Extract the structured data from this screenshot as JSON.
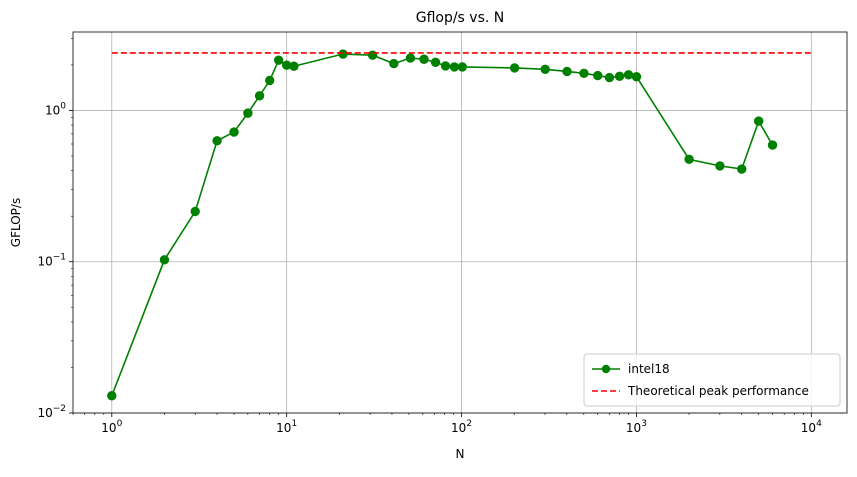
{
  "chart_data": {
    "type": "line",
    "title": "Gflop/s vs. N",
    "xlabel": "N",
    "ylabel": "GFLOP/s",
    "xscale": "log",
    "yscale": "log",
    "xlim": [
      0.6,
      16000
    ],
    "ylim": [
      0.01,
      3.3
    ],
    "grid": true,
    "legend_position": "lower right",
    "x_ticks": [
      {
        "value": 1,
        "base": "10",
        "exp": "0"
      },
      {
        "value": 10,
        "base": "10",
        "exp": "1"
      },
      {
        "value": 100,
        "base": "10",
        "exp": "2"
      },
      {
        "value": 1000,
        "base": "10",
        "exp": "3"
      },
      {
        "value": 10000,
        "base": "10",
        "exp": "4"
      }
    ],
    "y_ticks": [
      {
        "value": 0.01,
        "base": "10",
        "exp": "−2"
      },
      {
        "value": 0.1,
        "base": "10",
        "exp": "−1"
      },
      {
        "value": 1,
        "base": "10",
        "exp": "0"
      }
    ],
    "series": [
      {
        "name": "intel18",
        "color": "#008000",
        "style": "line-marker",
        "x": [
          1,
          2,
          3,
          4,
          5,
          6,
          7,
          8,
          9,
          10,
          11,
          21,
          31,
          41,
          51,
          61,
          71,
          81,
          91,
          101,
          201,
          301,
          401,
          501,
          601,
          701,
          801,
          901,
          1001,
          2001,
          3001,
          4001,
          5001,
          6001
        ],
        "y": [
          0.013,
          0.103,
          0.215,
          0.63,
          0.72,
          0.96,
          1.25,
          1.58,
          2.15,
          1.99,
          1.96,
          2.36,
          2.32,
          2.04,
          2.22,
          2.18,
          2.08,
          1.97,
          1.94,
          1.94,
          1.91,
          1.87,
          1.81,
          1.76,
          1.7,
          1.65,
          1.68,
          1.72,
          1.67,
          0.475,
          0.43,
          0.41,
          0.85,
          0.59
        ]
      },
      {
        "name": "Theoretical peak performance",
        "color": "#ff0000",
        "style": "dashed",
        "x": [
          1,
          10000
        ],
        "y": [
          2.4,
          2.4
        ]
      }
    ]
  }
}
